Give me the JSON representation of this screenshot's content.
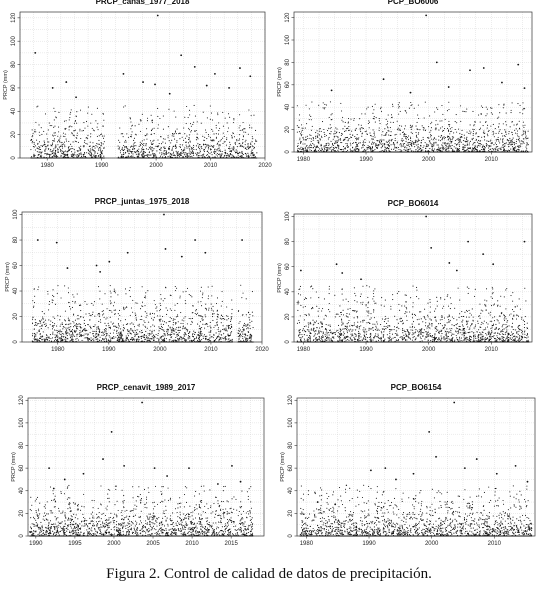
{
  "caption": "Figura 2. Control de calidad de datos de precipitación.",
  "chart_data": [
    {
      "type": "scatter",
      "title": "PRCP_cañas_1977_2018",
      "ylabel": "PRCP (mm)",
      "xlim": [
        1975,
        2020
      ],
      "ylim": [
        0,
        125
      ],
      "xticks": [
        1980,
        1990,
        2000,
        2010,
        2020
      ],
      "yticks": [
        0,
        20,
        40,
        60,
        80,
        100,
        120
      ],
      "data_range": [
        1977,
        2018.5
      ],
      "gaps": [
        [
          1990.5,
          1993
        ]
      ],
      "grid": true,
      "extremes": [
        {
          "x": 1977.8,
          "y": 90
        },
        {
          "x": 1981.0,
          "y": 60
        },
        {
          "x": 1983.5,
          "y": 65
        },
        {
          "x": 1985.3,
          "y": 52
        },
        {
          "x": 1994.0,
          "y": 72
        },
        {
          "x": 1997.6,
          "y": 65
        },
        {
          "x": 1999.8,
          "y": 63
        },
        {
          "x": 2000.3,
          "y": 122
        },
        {
          "x": 2002.5,
          "y": 55
        },
        {
          "x": 2004.6,
          "y": 88
        },
        {
          "x": 2007.1,
          "y": 78
        },
        {
          "x": 2009.3,
          "y": 62
        },
        {
          "x": 2010.8,
          "y": 72
        },
        {
          "x": 2013.4,
          "y": 60
        },
        {
          "x": 2015.4,
          "y": 77
        },
        {
          "x": 2017.3,
          "y": 70
        }
      ]
    },
    {
      "type": "scatter",
      "title": "PCP_BO6006",
      "ylabel": "PRCP (mm)",
      "xlim": [
        1978.5,
        2016.5
      ],
      "ylim": [
        0,
        125
      ],
      "xticks": [
        1980,
        1990,
        2000,
        2010
      ],
      "yticks": [
        0,
        20,
        40,
        60,
        80,
        100,
        120
      ],
      "data_range": [
        1979,
        2016
      ],
      "gaps": [],
      "grid": true,
      "extremes": [
        {
          "x": 1984.5,
          "y": 55
        },
        {
          "x": 1992.8,
          "y": 65
        },
        {
          "x": 1997.1,
          "y": 53
        },
        {
          "x": 1999.6,
          "y": 122
        },
        {
          "x": 2001.3,
          "y": 80
        },
        {
          "x": 2003.2,
          "y": 58
        },
        {
          "x": 2006.6,
          "y": 73
        },
        {
          "x": 2008.8,
          "y": 75
        },
        {
          "x": 2011.7,
          "y": 62
        },
        {
          "x": 2014.3,
          "y": 78
        },
        {
          "x": 2015.3,
          "y": 57
        }
      ]
    },
    {
      "type": "scatter",
      "title": "PRCP_juntas_1975_2018",
      "ylabel": "PRCP (mm)",
      "xlim": [
        1973,
        2020
      ],
      "ylim": [
        0,
        102
      ],
      "xticks": [
        1980,
        1990,
        2000,
        2010,
        2020
      ],
      "yticks": [
        0,
        20,
        40,
        60,
        80,
        100
      ],
      "data_range": [
        1975,
        2018.3
      ],
      "gaps": [
        [
          2014.2,
          2015.3
        ]
      ],
      "grid": true,
      "extremes": [
        {
          "x": 1976.1,
          "y": 80
        },
        {
          "x": 1979.8,
          "y": 78
        },
        {
          "x": 1981.9,
          "y": 58
        },
        {
          "x": 1987.6,
          "y": 60
        },
        {
          "x": 1988.3,
          "y": 55
        },
        {
          "x": 1990.1,
          "y": 63
        },
        {
          "x": 1993.7,
          "y": 70
        },
        {
          "x": 2000.8,
          "y": 100
        },
        {
          "x": 2001.1,
          "y": 73
        },
        {
          "x": 2004.3,
          "y": 67
        },
        {
          "x": 2006.9,
          "y": 80
        },
        {
          "x": 2008.9,
          "y": 70
        },
        {
          "x": 2016.1,
          "y": 80
        }
      ]
    },
    {
      "type": "scatter",
      "title": "PCP_BO6014",
      "ylabel": "PRCP (mm)",
      "xlim": [
        1978.5,
        2016.5
      ],
      "ylim": [
        0,
        102
      ],
      "xticks": [
        1980,
        1990,
        2000,
        2010
      ],
      "yticks": [
        0,
        20,
        40,
        60,
        80,
        100
      ],
      "data_range": [
        1979,
        2016
      ],
      "gaps": [],
      "grid": true,
      "extremes": [
        {
          "x": 1979.6,
          "y": 57
        },
        {
          "x": 1985.3,
          "y": 62
        },
        {
          "x": 1986.2,
          "y": 55
        },
        {
          "x": 1989.2,
          "y": 50
        },
        {
          "x": 1999.6,
          "y": 100
        },
        {
          "x": 2000.4,
          "y": 75
        },
        {
          "x": 2003.3,
          "y": 63
        },
        {
          "x": 2004.5,
          "y": 57
        },
        {
          "x": 2006.3,
          "y": 80
        },
        {
          "x": 2008.7,
          "y": 70
        },
        {
          "x": 2010.3,
          "y": 62
        },
        {
          "x": 2015.3,
          "y": 80
        }
      ]
    },
    {
      "type": "scatter",
      "title": "PRCP_cenavit_1989_2017",
      "ylabel": "PRCP (mm)",
      "xlim": [
        1989,
        2019.2
      ],
      "ylim": [
        0,
        122
      ],
      "xticks": [
        1990,
        1995,
        2000,
        2005,
        2010,
        2015
      ],
      "yticks": [
        0,
        20,
        40,
        60,
        80,
        100,
        120
      ],
      "data_range": [
        1989.2,
        2017.8
      ],
      "gaps": [],
      "grid": true,
      "extremes": [
        {
          "x": 1991.7,
          "y": 60
        },
        {
          "x": 1992.3,
          "y": 42
        },
        {
          "x": 1993.7,
          "y": 50
        },
        {
          "x": 1996.1,
          "y": 55
        },
        {
          "x": 1998.6,
          "y": 68
        },
        {
          "x": 1999.7,
          "y": 92
        },
        {
          "x": 2001.3,
          "y": 62
        },
        {
          "x": 2003.6,
          "y": 118
        },
        {
          "x": 2005.2,
          "y": 60
        },
        {
          "x": 2006.8,
          "y": 53
        },
        {
          "x": 2009.6,
          "y": 60
        },
        {
          "x": 2013.3,
          "y": 46
        },
        {
          "x": 2015.1,
          "y": 62
        },
        {
          "x": 2016.2,
          "y": 48
        }
      ]
    },
    {
      "type": "scatter",
      "title": "PCP_BO6154",
      "ylabel": "PRCP (mm)",
      "xlim": [
        1978.5,
        2016.5
      ],
      "ylim": [
        0,
        122
      ],
      "xticks": [
        1980,
        1990,
        2000,
        2010
      ],
      "yticks": [
        0,
        20,
        40,
        60,
        80,
        100,
        120
      ],
      "data_range": [
        1979,
        2016
      ],
      "gaps": [],
      "grid": true,
      "extremes": [
        {
          "x": 1981.8,
          "y": 30
        },
        {
          "x": 1984.6,
          "y": 28
        },
        {
          "x": 1990.3,
          "y": 58
        },
        {
          "x": 1992.6,
          "y": 60
        },
        {
          "x": 1994.3,
          "y": 50
        },
        {
          "x": 1997.1,
          "y": 55
        },
        {
          "x": 1999.6,
          "y": 92
        },
        {
          "x": 2000.7,
          "y": 70
        },
        {
          "x": 2003.6,
          "y": 118
        },
        {
          "x": 2005.3,
          "y": 60
        },
        {
          "x": 2007.2,
          "y": 68
        },
        {
          "x": 2010.4,
          "y": 55
        },
        {
          "x": 2013.4,
          "y": 62
        },
        {
          "x": 2015.3,
          "y": 48
        }
      ]
    }
  ]
}
